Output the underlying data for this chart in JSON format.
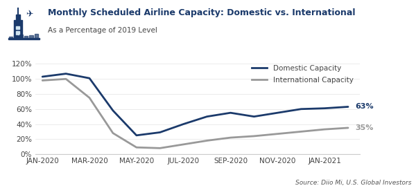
{
  "title": "Monthly Scheduled Airline Capacity: Domestic vs. International",
  "subtitle": "As a Percentage of 2019 Level",
  "source": "Source: Diio Mi, U.S. Global Investors",
  "domestic_color": "#1b3a6b",
  "international_color": "#999999",
  "x_labels": [
    "JAN-2020",
    "MAR-2020",
    "MAY-2020",
    "JUL-2020",
    "SEP-2020",
    "NOV-2020",
    "JAN-2021"
  ],
  "x_tick_positions": [
    0,
    2,
    4,
    6,
    8,
    10,
    12
  ],
  "domestic_x": [
    0,
    1,
    2,
    3,
    4,
    5,
    6,
    7,
    8,
    9,
    10,
    11,
    12,
    13
  ],
  "domestic_y": [
    103,
    107,
    101,
    58,
    25,
    29,
    40,
    50,
    55,
    50,
    55,
    60,
    61,
    63
  ],
  "international_x": [
    0,
    1,
    2,
    3,
    4,
    5,
    6,
    7,
    8,
    9,
    10,
    11,
    12,
    13
  ],
  "international_y": [
    98,
    100,
    75,
    28,
    9,
    8,
    13,
    18,
    22,
    24,
    27,
    30,
    33,
    35
  ],
  "ylim": [
    0,
    125
  ],
  "yticks": [
    0,
    20,
    40,
    60,
    80,
    100,
    120
  ],
  "ytick_labels": [
    "0%",
    "20%",
    "40%",
    "60%",
    "80%",
    "100%",
    "120%"
  ],
  "domestic_label": "Domestic Capacity",
  "international_label": "International Capacity",
  "domestic_end_label": "63%",
  "international_end_label": "35%",
  "title_color": "#1b3a6b",
  "subtitle_color": "#444444",
  "source_color": "#555555",
  "tick_color": "#444444",
  "background_color": "#ffffff",
  "grid_color": "#e8e8e8",
  "spine_color": "#cccccc",
  "icon_bg_color": "#d0e4f0",
  "icon_fg_color": "#1b3a6b"
}
